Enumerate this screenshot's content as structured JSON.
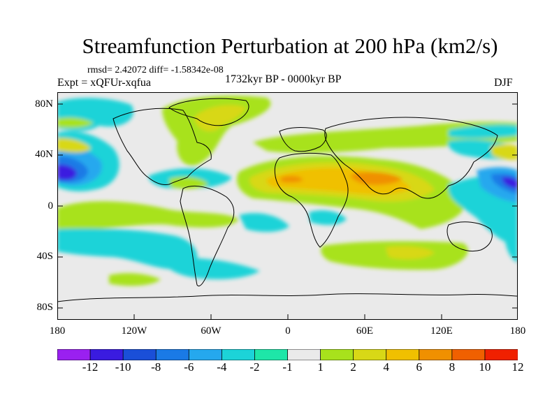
{
  "title": "Streamfunction Perturbation at 200 hPa (km2/s)",
  "stats": "rmsd= 2.42072 diff= -1.58342e-08",
  "experiment": "Expt = xQFUr-xqfua",
  "period": "1732kyr BP - 0000kyr BP",
  "season": "DJF",
  "lat_labels": [
    "80N",
    "40N",
    "0",
    "40S",
    "80S"
  ],
  "lon_labels": [
    "180",
    "120W",
    "60W",
    "0",
    "60E",
    "120E",
    "180"
  ],
  "colorbar": {
    "labels": [
      "-12",
      "-10",
      "-8",
      "-6",
      "-4",
      "-2",
      "-1",
      "1",
      "2",
      "4",
      "6",
      "8",
      "10",
      "12"
    ],
    "colors": [
      "#9a20f0",
      "#3a1be0",
      "#1a4fd8",
      "#1a7ae6",
      "#25a8ee",
      "#1cd3d8",
      "#1ee6a8",
      "#eaeaea",
      "#a8e21c",
      "#d8d816",
      "#f0c000",
      "#f09000",
      "#f06000",
      "#f02000"
    ]
  },
  "map_data": {
    "ocean_color": "#eaeaea",
    "features": [
      "Negative anomaly centers over the central North Pacific near 20N and the western Pacific near 20N",
      "Positive anomaly band from North Africa across the Middle East to South Asia near 20N-40N",
      "Positive anomalies over Greenland/North Atlantic and the North Pacific near 60N"
    ]
  }
}
